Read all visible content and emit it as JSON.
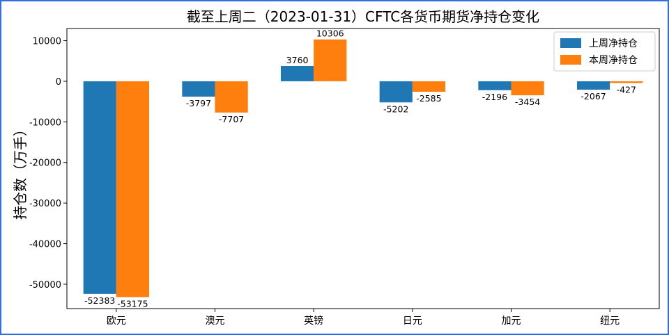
{
  "chart_data": {
    "type": "bar",
    "title": "截至上周二（2023-01-31）CFTC各货币期货净持仓变化",
    "xlabel": "",
    "ylabel": "持仓数（万手）",
    "categories": [
      "欧元",
      "澳元",
      "英镑",
      "日元",
      "加元",
      "纽元"
    ],
    "series": [
      {
        "name": "上周净持仓",
        "color": "#1f77b4",
        "values": [
          -52383,
          -3797,
          3760,
          -5202,
          -2196,
          -2067
        ]
      },
      {
        "name": "本周净持仓",
        "color": "#ff7f0e",
        "values": [
          -53175,
          -7707,
          10306,
          -2585,
          -3454,
          -427
        ]
      }
    ],
    "ylim": [
      -56000,
      13000
    ],
    "yticks": [
      10000,
      0,
      -10000,
      -20000,
      -30000,
      -40000,
      -50000
    ],
    "legend": "upper-right",
    "grid": false
  }
}
